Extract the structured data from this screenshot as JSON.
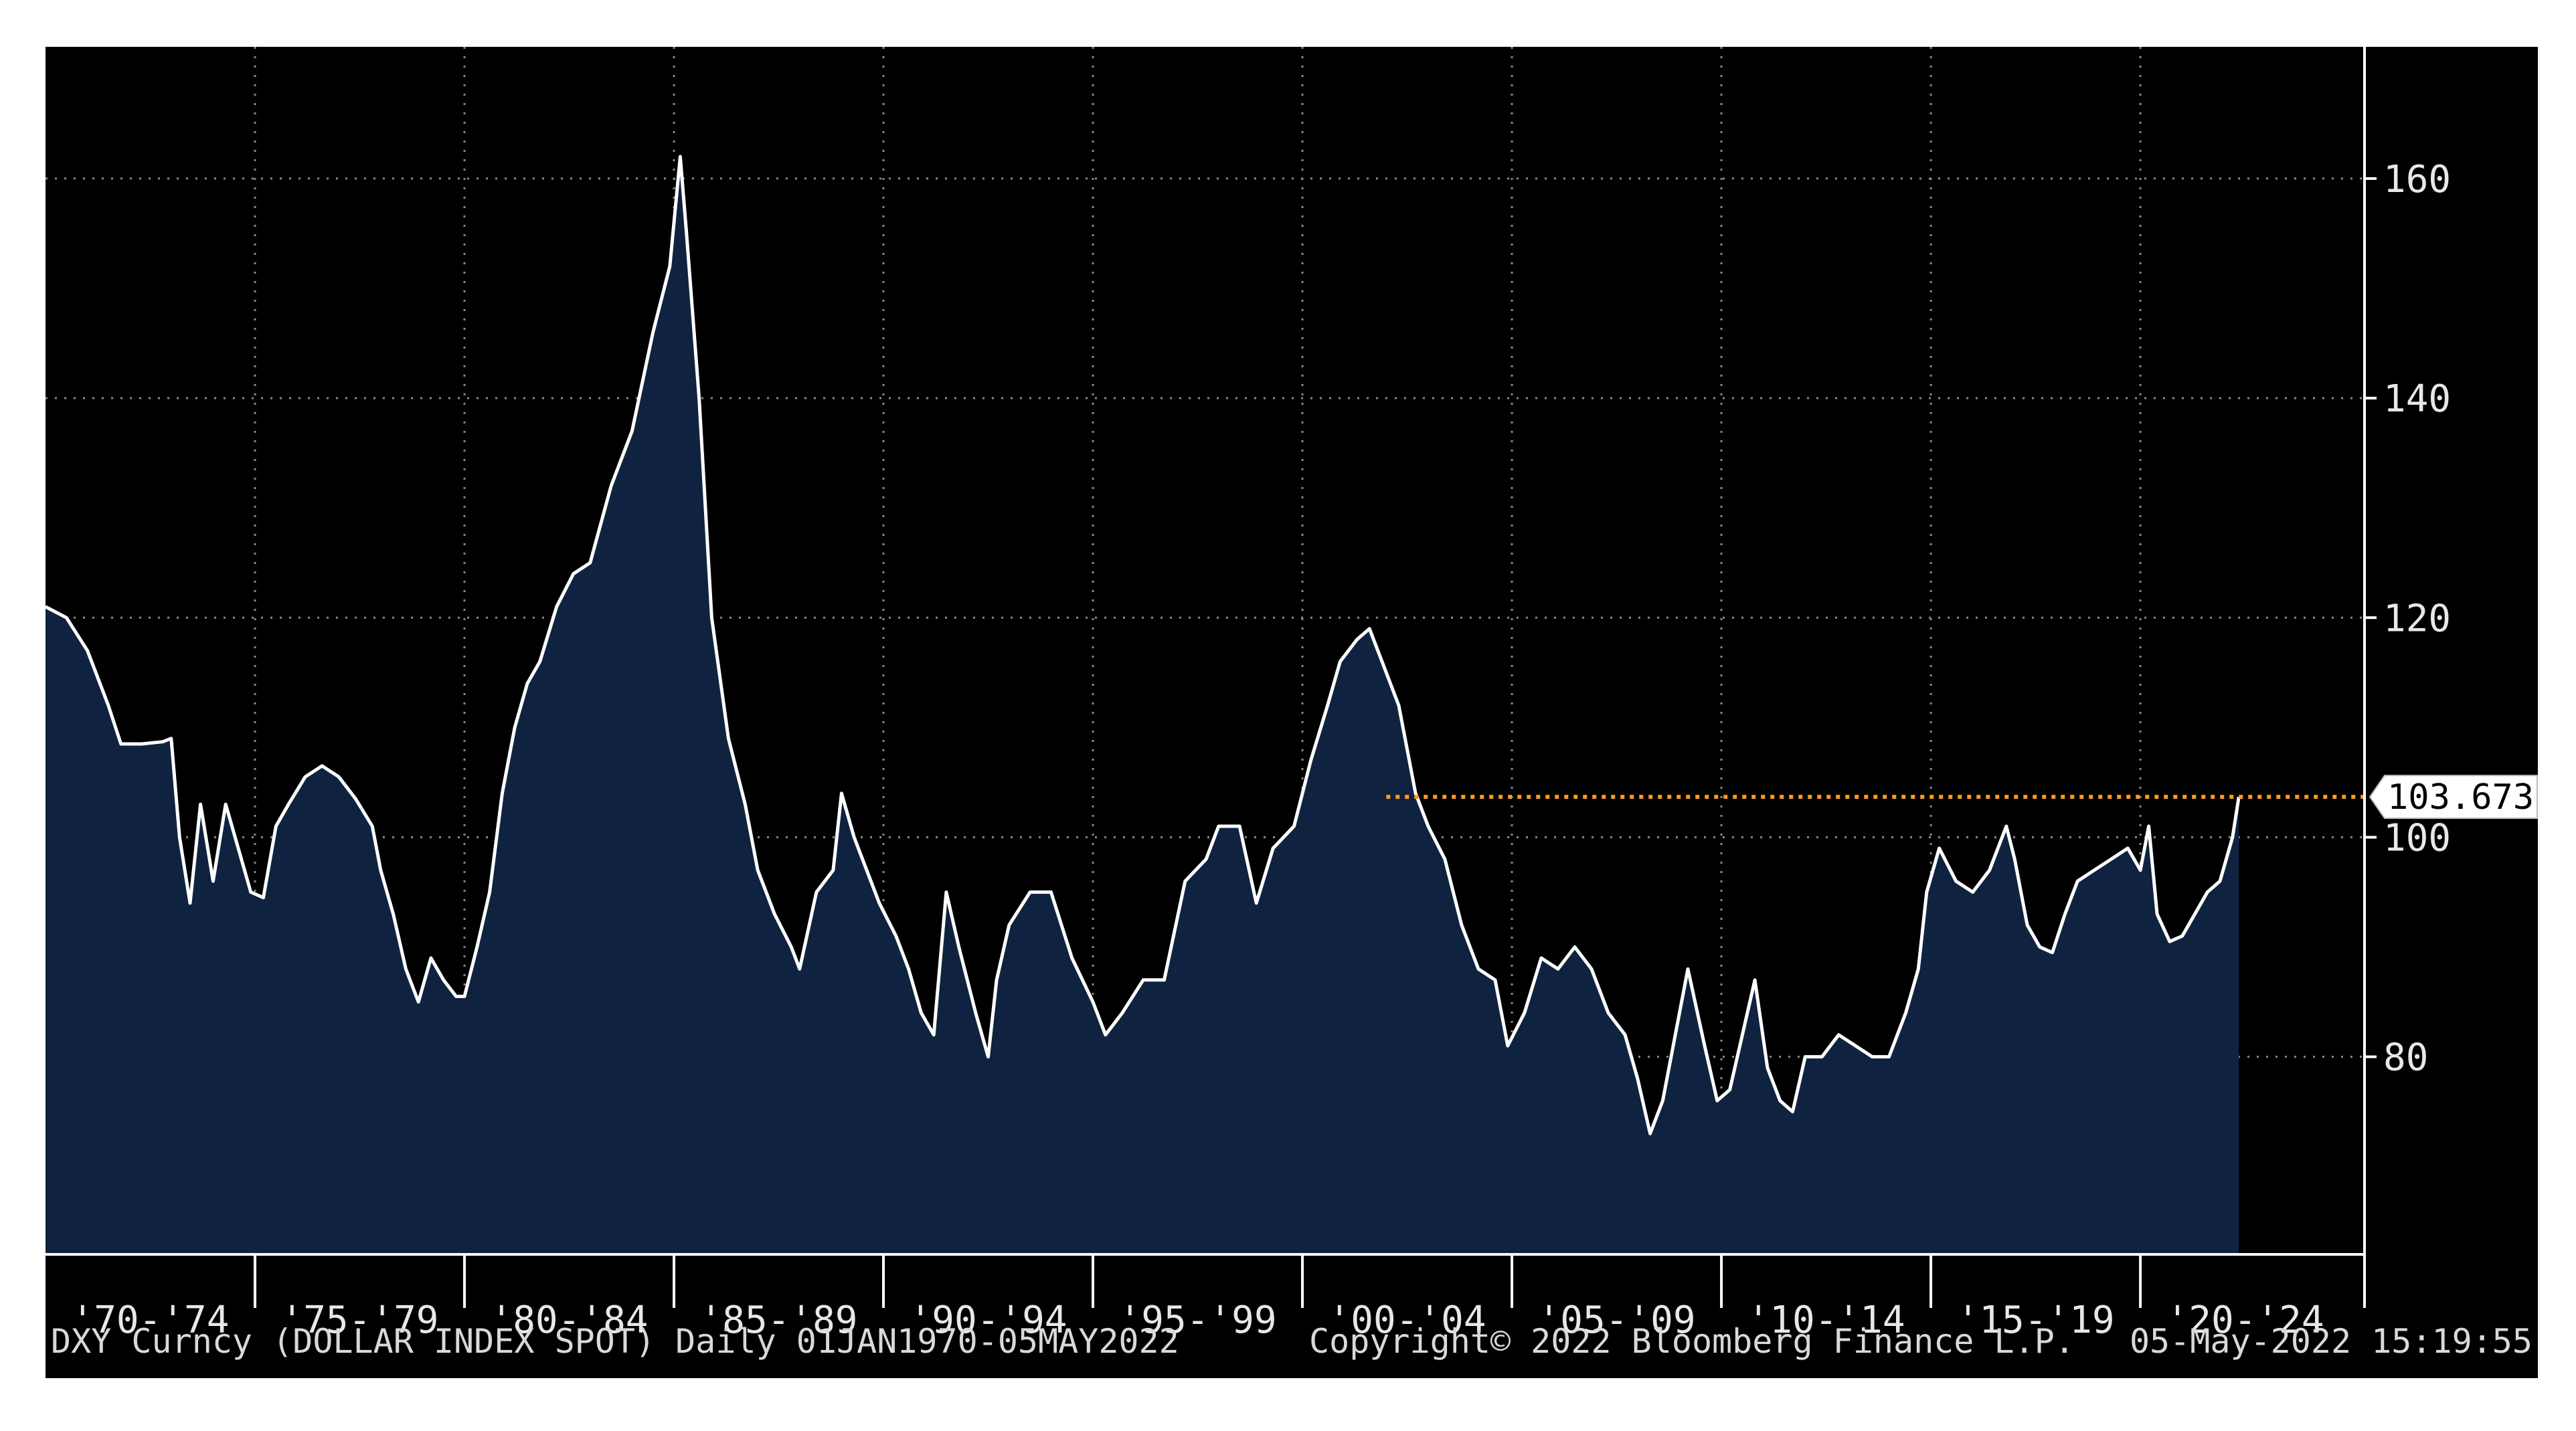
{
  "chart_data": {
    "type": "area",
    "title": "",
    "xlabel": "",
    "ylabel": "",
    "ylim": [
      62,
      172
    ],
    "yticks": [
      80,
      100,
      120,
      140,
      160
    ],
    "grid": true,
    "y_axis_position": "right",
    "x_period_labels": [
      "'70-'74",
      "'75-'79",
      "'80-'84",
      "'85-'89",
      "'90-'94",
      "'95-'99",
      "'00-'04",
      "'05-'09",
      "'10-'14",
      "'15-'19",
      "'20-'24"
    ],
    "x_range": [
      1970.0,
      2025.35
    ],
    "reference_line": {
      "value": 103.673,
      "label": "103.673",
      "start_x": 2002.0,
      "color": "#ff9d1e"
    },
    "colors": {
      "background": "#000000",
      "area_fill": "#0f2340",
      "line": "#ffffff",
      "grid": "#8a8a8a",
      "reference": "#ff9d1e"
    },
    "series": [
      {
        "name": "",
        "x": [
          1970.0,
          1970.5,
          1971.0,
          1971.5,
          1971.8,
          1972.3,
          1972.8,
          1973.0,
          1973.2,
          1973.45,
          1973.7,
          1974.0,
          1974.3,
          1974.6,
          1974.9,
          1975.2,
          1975.5,
          1975.8,
          1976.2,
          1976.6,
          1977.0,
          1977.4,
          1977.8,
          1978.0,
          1978.3,
          1978.6,
          1978.9,
          1979.2,
          1979.5,
          1979.8,
          1980.0,
          1980.3,
          1980.6,
          1980.9,
          1981.2,
          1981.5,
          1981.8,
          1982.2,
          1982.6,
          1983.0,
          1983.5,
          1984.0,
          1984.5,
          1984.9,
          1985.15,
          1985.3,
          1985.6,
          1985.9,
          1986.3,
          1986.7,
          1987.0,
          1987.4,
          1987.8,
          1988.0,
          1988.4,
          1988.8,
          1989.0,
          1989.3,
          1989.6,
          1989.9,
          1990.3,
          1990.6,
          1990.9,
          1991.2,
          1991.5,
          1991.8,
          1992.2,
          1992.5,
          1992.7,
          1993.0,
          1993.5,
          1994.0,
          1994.5,
          1995.0,
          1995.3,
          1995.7,
          1996.2,
          1996.7,
          1997.2,
          1997.7,
          1998.0,
          1998.5,
          1998.9,
          1999.3,
          1999.8,
          2000.2,
          2000.6,
          2000.9,
          2001.3,
          2001.6,
          2001.9,
          2002.3,
          2002.7,
          2003.0,
          2003.4,
          2003.8,
          2004.2,
          2004.6,
          2004.9,
          2005.3,
          2005.7,
          2006.1,
          2006.5,
          2006.9,
          2007.3,
          2007.7,
          2008.0,
          2008.3,
          2008.6,
          2008.9,
          2009.2,
          2009.6,
          2009.9,
          2010.2,
          2010.5,
          2010.8,
          2011.1,
          2011.4,
          2011.7,
          2012.0,
          2012.4,
          2012.8,
          2013.2,
          2013.6,
          2014.0,
          2014.4,
          2014.7,
          2014.9,
          2015.2,
          2015.6,
          2016.0,
          2016.4,
          2016.8,
          2017.0,
          2017.3,
          2017.6,
          2017.9,
          2018.2,
          2018.5,
          2018.9,
          2019.3,
          2019.7,
          2020.0,
          2020.2,
          2020.4,
          2020.7,
          2021.0,
          2021.3,
          2021.6,
          2021.9,
          2022.2,
          2022.35
        ],
        "values": [
          121.0,
          120.0,
          117.0,
          112.0,
          108.5,
          108.5,
          108.7,
          109.0,
          100.0,
          94.0,
          103.0,
          96.0,
          103.0,
          99.0,
          95.0,
          94.5,
          101.0,
          103.0,
          105.5,
          106.5,
          105.5,
          103.5,
          101.0,
          97.0,
          93.0,
          88.0,
          85.0,
          89.0,
          87.0,
          85.5,
          85.5,
          90.0,
          95.0,
          104.0,
          110.0,
          114.0,
          116.0,
          121.0,
          124.0,
          125.0,
          132.0,
          137.0,
          146.0,
          152.0,
          162.0,
          155.0,
          140.0,
          120.0,
          109.0,
          103.0,
          97.0,
          93.0,
          90.0,
          88.0,
          95.0,
          97.0,
          104.0,
          100.0,
          97.0,
          94.0,
          91.0,
          88.0,
          84.0,
          82.0,
          95.0,
          90.0,
          84.0,
          80.0,
          87.0,
          92.0,
          95.0,
          95.0,
          89.0,
          85.0,
          82.0,
          84.0,
          87.0,
          87.0,
          96.0,
          98.0,
          101.0,
          101.0,
          94.0,
          99.0,
          101.0,
          107.0,
          112.0,
          116.0,
          118.0,
          119.0,
          116.0,
          112.0,
          104.0,
          101.0,
          98.0,
          92.0,
          88.0,
          87.0,
          81.0,
          84.0,
          89.0,
          88.0,
          90.0,
          88.0,
          84.0,
          82.0,
          78.0,
          73.0,
          76.0,
          82.0,
          88.0,
          81.0,
          76.0,
          77.0,
          82.0,
          87.0,
          79.0,
          76.0,
          75.0,
          80.0,
          80.0,
          82.0,
          81.0,
          80.0,
          80.0,
          84.0,
          88.0,
          95.0,
          99.0,
          96.0,
          95.0,
          97.0,
          101.0,
          98.0,
          92.0,
          90.0,
          89.5,
          93.0,
          96.0,
          97.0,
          98.0,
          99.0,
          97.0,
          101.0,
          93.0,
          90.5,
          91.0,
          93.0,
          95.0,
          96.0,
          100.0,
          103.673
        ]
      }
    ],
    "footer": {
      "left": "DXY Curncy (DOLLAR INDEX SPOT)  Daily 01JAN1970-05MAY2022",
      "center": "Copyright© 2022 Bloomberg Finance L.P.",
      "right": "05-May-2022 15:19:55"
    }
  }
}
